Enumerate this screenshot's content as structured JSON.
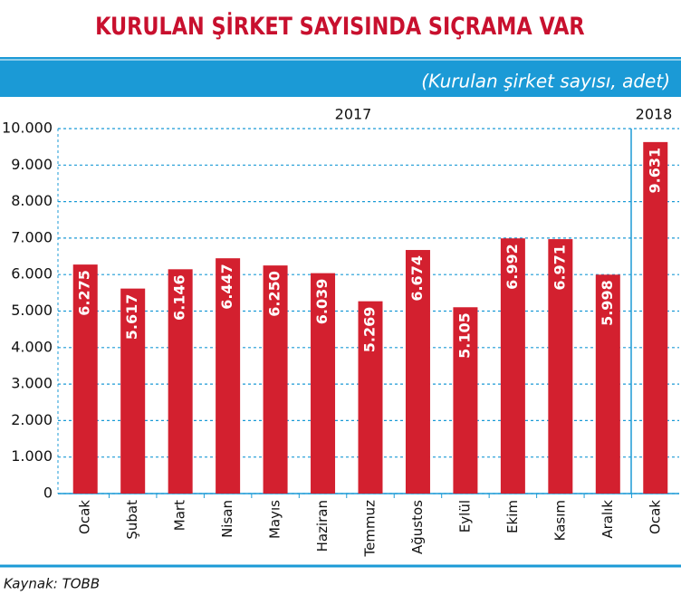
{
  "chart_data": {
    "type": "bar",
    "title": "KURULAN ŞİRKET SAYISINDA SIÇRAMA VAR",
    "subtitle": "(Kurulan şirket sayısı, adet)",
    "period_labels": [
      "2017",
      "2018"
    ],
    "categories": [
      "Ocak",
      "Şubat",
      "Mart",
      "Nisan",
      "Mayıs",
      "Haziran",
      "Temmuz",
      "Ağustos",
      "Eylül",
      "Ekim",
      "Kasım",
      "Aralık",
      "Ocak"
    ],
    "values": [
      6275,
      5617,
      6146,
      6447,
      6250,
      6039,
      5269,
      6674,
      5105,
      6992,
      6971,
      5998,
      9631
    ],
    "value_labels": [
      "6.275",
      "5.617",
      "6.146",
      "6.447",
      "6.250",
      "6.039",
      "5.269",
      "6.674",
      "5.105",
      "6.992",
      "6.971",
      "5.998",
      "9.631"
    ],
    "color": "#d3202f",
    "ylim": [
      0,
      10000
    ],
    "yticks": [
      0,
      {
        "value": 1000,
        "label": "1.000"
      },
      {
        "value": 2000,
        "label": "2.000"
      },
      {
        "value": 3000,
        "label": "3.000"
      },
      {
        "value": 4000,
        "label": "4.000"
      },
      {
        "value": 5000,
        "label": "5.000"
      },
      {
        "value": 6000,
        "label": "6.000"
      },
      {
        "value": 7000,
        "label": "7.000"
      },
      {
        "value": 8000,
        "label": "8.000"
      },
      {
        "value": 9000,
        "label": "9.000"
      },
      {
        "value": 10000,
        "label": "10.000"
      }
    ],
    "grid": true,
    "source": "Kaynak: TOBB"
  }
}
